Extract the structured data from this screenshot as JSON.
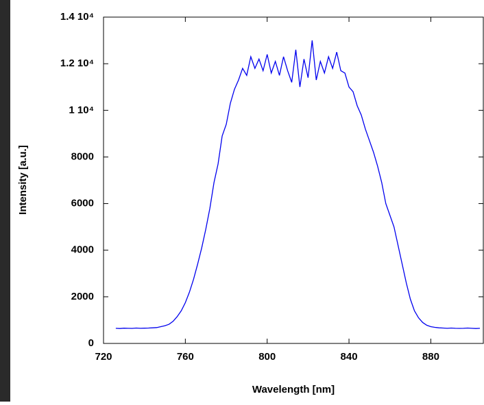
{
  "chart_data": {
    "type": "line",
    "x_label": "Wavelength [nm]",
    "y_label": "Intensity [a.u.]",
    "xlim": [
      720,
      906
    ],
    "xticks": [
      720,
      760,
      800,
      840,
      880
    ],
    "ylim": [
      0,
      14000
    ],
    "yticks": [
      0,
      2000,
      4000,
      6000,
      8000,
      {
        "value": 10000,
        "label": "1 10⁴"
      },
      {
        "value": 12000,
        "label": "1.2 10⁴"
      },
      {
        "value": 14000,
        "label": "1.4 10⁴"
      }
    ],
    "series": [
      {
        "color": "#0000ee",
        "x": [
          726,
          728,
          730,
          732,
          734,
          736,
          738,
          740,
          742,
          744,
          746,
          748,
          750,
          752,
          754,
          756,
          758,
          760,
          762,
          764,
          766,
          768,
          770,
          772,
          774,
          776,
          778,
          780,
          782,
          784,
          786,
          788,
          790,
          792,
          794,
          796,
          798,
          800,
          802,
          804,
          806,
          808,
          810,
          812,
          814,
          816,
          818,
          820,
          822,
          824,
          826,
          828,
          830,
          832,
          834,
          836,
          838,
          840,
          842,
          844,
          846,
          848,
          850,
          852,
          854,
          856,
          858,
          860,
          862,
          864,
          866,
          868,
          870,
          872,
          874,
          876,
          878,
          880,
          882,
          884,
          886,
          888,
          890,
          892,
          894,
          896,
          898,
          900,
          902,
          904
        ],
        "values": [
          650,
          640,
          655,
          650,
          645,
          660,
          650,
          655,
          660,
          670,
          680,
          720,
          760,
          820,
          950,
          1150,
          1400,
          1750,
          2200,
          2750,
          3400,
          4100,
          4900,
          5800,
          6900,
          7700,
          8900,
          9400,
          10300,
          10900,
          11300,
          11800,
          11500,
          12300,
          11800,
          12200,
          11700,
          12400,
          11600,
          12100,
          11500,
          12300,
          11700,
          11200,
          12600,
          11000,
          12200,
          11400,
          13000,
          11300,
          12100,
          11600,
          12300,
          11800,
          12500,
          11700,
          11600,
          11000,
          10800,
          10200,
          9800,
          9200,
          8700,
          8200,
          7600,
          6900,
          6000,
          5500,
          5000,
          4200,
          3400,
          2600,
          1900,
          1400,
          1100,
          900,
          780,
          720,
          690,
          670,
          660,
          650,
          660,
          650,
          645,
          650,
          660,
          650,
          640,
          650
        ]
      }
    ]
  }
}
